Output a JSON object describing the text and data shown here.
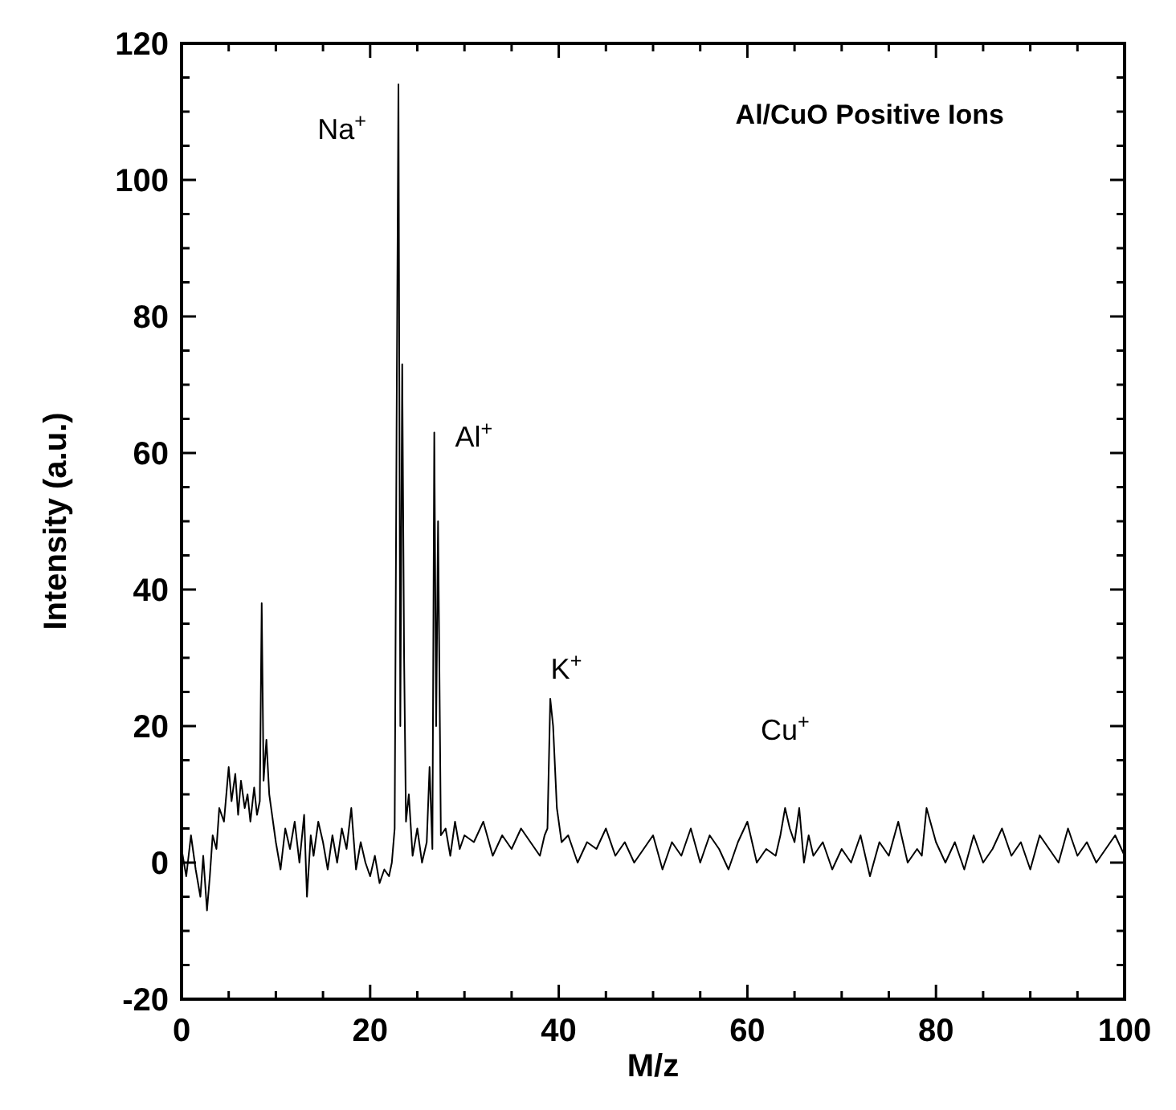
{
  "chart_data": {
    "type": "line",
    "title": "Al/CuO Positive Ions",
    "xlabel": "M/z",
    "ylabel": "Intensity (a.u.)",
    "xlim": [
      0,
      100
    ],
    "ylim": [
      -20,
      120
    ],
    "xticks": [
      0,
      {
        "value": 5,
        "label": null
      },
      20,
      {
        "value": 10,
        "label": null
      },
      {
        "value": 15,
        "label": null
      },
      {
        "value": 25,
        "label": null
      },
      40,
      {
        "value": 30,
        "label": null
      },
      {
        "value": 35,
        "label": null
      },
      {
        "value": 45,
        "label": null
      },
      60,
      {
        "value": 50,
        "label": null
      },
      {
        "value": 55,
        "label": null
      },
      {
        "value": 65,
        "label": null
      },
      80,
      {
        "value": 70,
        "label": null
      },
      {
        "value": 75,
        "label": null
      },
      {
        "value": 85,
        "label": null
      },
      100,
      {
        "value": 90,
        "label": null
      },
      {
        "value": 95,
        "label": null
      }
    ],
    "yticks": [
      -20,
      {
        "value": -15,
        "label": null
      },
      {
        "value": -10,
        "label": null
      },
      {
        "value": -5,
        "label": null
      },
      0,
      {
        "value": 5,
        "label": null
      },
      {
        "value": 10,
        "label": null
      },
      {
        "value": 15,
        "label": null
      },
      20,
      {
        "value": 25,
        "label": null
      },
      {
        "value": 30,
        "label": null
      },
      {
        "value": 35,
        "label": null
      },
      40,
      {
        "value": 45,
        "label": null
      },
      {
        "value": 50,
        "label": null
      },
      {
        "value": 55,
        "label": null
      },
      60,
      {
        "value": 65,
        "label": null
      },
      {
        "value": 70,
        "label": null
      },
      {
        "value": 75,
        "label": null
      },
      80,
      {
        "value": 85,
        "label": null
      },
      {
        "value": 90,
        "label": null
      },
      {
        "value": 95,
        "label": null
      },
      100,
      {
        "value": 105,
        "label": null
      },
      {
        "value": 110,
        "label": null
      },
      {
        "value": 115,
        "label": null
      },
      120
    ],
    "grid": false,
    "marker": "none",
    "line_style": "solid",
    "annotations": [
      "Na$^{+}$",
      "Al$^{+}$",
      "K$^{+}$",
      "Cu$^{+}$"
    ],
    "series": [
      {
        "color": "#000000",
        "x": [
          0,
          0.5,
          1,
          1.5,
          2,
          2.3,
          2.7,
          3,
          3.3,
          3.7,
          4,
          4.5,
          5,
          5.3,
          5.7,
          6,
          6.3,
          6.7,
          7,
          7.3,
          7.7,
          8,
          8.3,
          8.5,
          8.7,
          9,
          9.3,
          9.7,
          10,
          10.5,
          11,
          11.5,
          12,
          12.5,
          13,
          13.3,
          13.7,
          14,
          14.5,
          15,
          15.5,
          16,
          16.5,
          17,
          17.5,
          18,
          18.5,
          19,
          19.5,
          20,
          20.5,
          21,
          21.5,
          22,
          22.3,
          22.6,
          22.8,
          23,
          23.2,
          23.4,
          23.6,
          23.8,
          24.1,
          24.5,
          25,
          25.5,
          26,
          26.3,
          26.6,
          26.8,
          27,
          27.2,
          27.5,
          28,
          28.5,
          29,
          29.5,
          30,
          31,
          32,
          33,
          34,
          35,
          36,
          37,
          38,
          38.5,
          38.8,
          39.1,
          39.4,
          39.8,
          40.3,
          41,
          42,
          43,
          44,
          45,
          46,
          47,
          48,
          49,
          50,
          51,
          52,
          53,
          54,
          55,
          56,
          57,
          58,
          59,
          60,
          61,
          62,
          63,
          63.5,
          64,
          64.5,
          65,
          65.5,
          66,
          66.5,
          67,
          68,
          69,
          70,
          71,
          72,
          73,
          74,
          75,
          76,
          77,
          78,
          78.5,
          79,
          80,
          81,
          82,
          83,
          84,
          85,
          86,
          87,
          88,
          89,
          90,
          91,
          92,
          93,
          94,
          95,
          96,
          97,
          98,
          99,
          100
        ],
        "values": [
          2,
          -2,
          4,
          -1,
          -5,
          1,
          -7,
          -2,
          4,
          2,
          8,
          6,
          14,
          9,
          13,
          7,
          12,
          8,
          10,
          6,
          11,
          7,
          9,
          38,
          12,
          18,
          10,
          6,
          3,
          -1,
          5,
          2,
          6,
          0,
          7,
          -5,
          4,
          1,
          6,
          3,
          -1,
          4,
          0,
          5,
          2,
          8,
          -1,
          3,
          0,
          -2,
          1,
          -3,
          -1,
          -2,
          0,
          5,
          63,
          114,
          20,
          73,
          30,
          6,
          10,
          1,
          5,
          0,
          3,
          14,
          2,
          63,
          20,
          50,
          4,
          5,
          1,
          6,
          2,
          4,
          3,
          6,
          1,
          4,
          2,
          5,
          3,
          1,
          4,
          5,
          24,
          20,
          8,
          3,
          4,
          0,
          3,
          2,
          5,
          1,
          3,
          0,
          2,
          4,
          -1,
          3,
          1,
          5,
          0,
          4,
          2,
          -1,
          3,
          6,
          0,
          2,
          1,
          4,
          8,
          5,
          3,
          8,
          0,
          4,
          1,
          3,
          -1,
          2,
          0,
          4,
          -2,
          3,
          1,
          6,
          0,
          2,
          1,
          8,
          3,
          0,
          3,
          -1,
          4,
          0,
          2,
          5,
          1,
          3,
          -1,
          4,
          2,
          0,
          5,
          1,
          3,
          0,
          2,
          4,
          1
        ]
      }
    ]
  }
}
